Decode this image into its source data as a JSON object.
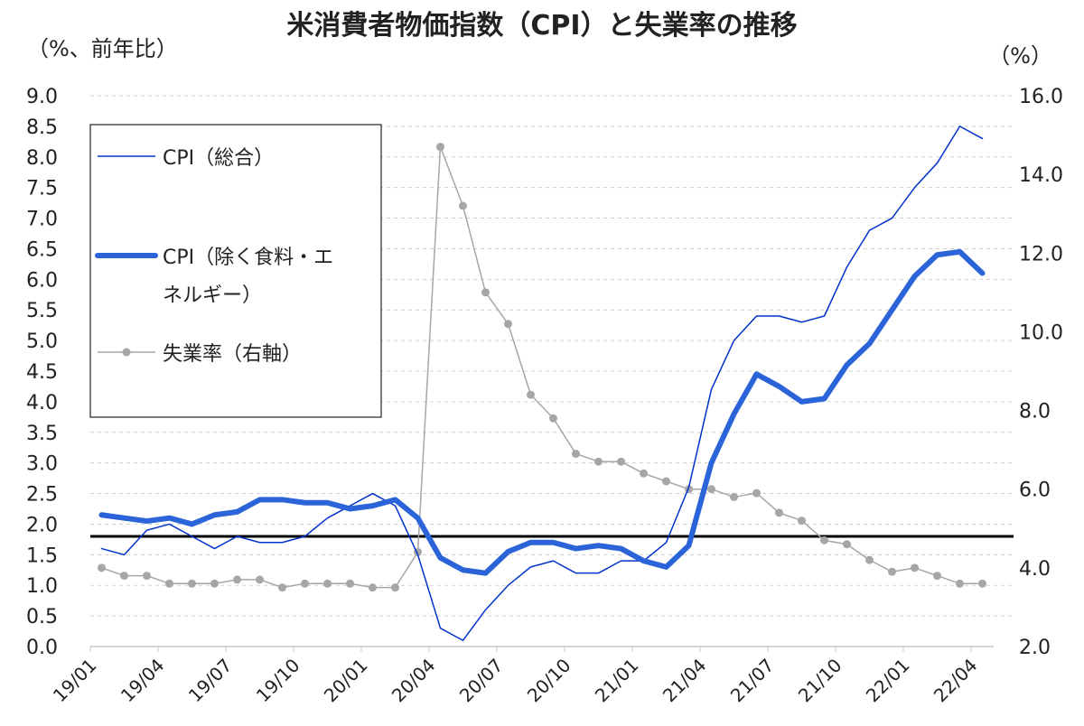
{
  "chart_data": {
    "type": "line",
    "title": "米消費者物価指数（CPI）と失業率の推移",
    "ylabel_left": "（%、前年比）",
    "ylabel_right": "（%）",
    "ylim_left": [
      0,
      9
    ],
    "ylim_right": [
      2,
      16
    ],
    "yticks_left": [
      "0.0",
      "0.5",
      "1.0",
      "1.5",
      "2.0",
      "2.5",
      "3.0",
      "3.5",
      "4.0",
      "4.5",
      "5.0",
      "5.5",
      "6.0",
      "6.5",
      "7.0",
      "7.5",
      "8.0",
      "8.5",
      "9.0"
    ],
    "yticks_right": [
      "2.0",
      "4.0",
      "6.0",
      "8.0",
      "10.0",
      "12.0",
      "14.0",
      "16.0"
    ],
    "grid": true,
    "legend_placement": "top-left",
    "categories": [
      "19/01",
      "19/02",
      "19/03",
      "19/04",
      "19/05",
      "19/06",
      "19/07",
      "19/08",
      "19/09",
      "19/10",
      "19/11",
      "19/12",
      "20/01",
      "20/02",
      "20/03",
      "20/04",
      "20/05",
      "20/06",
      "20/07",
      "20/08",
      "20/09",
      "20/10",
      "20/11",
      "20/12",
      "21/01",
      "21/02",
      "21/03",
      "21/04",
      "21/05",
      "21/06",
      "21/07",
      "21/08",
      "21/09",
      "21/10",
      "21/11",
      "21/12",
      "22/01",
      "22/02",
      "22/03",
      "22/04"
    ],
    "xtick_labels": [
      "19/01",
      "19/04",
      "19/07",
      "19/10",
      "20/01",
      "20/04",
      "20/07",
      "20/10",
      "21/01",
      "21/04",
      "21/07",
      "21/10",
      "22/01",
      "22/04"
    ],
    "reference_line_left": 1.8,
    "series": [
      {
        "name": "CPI（総合）",
        "axis": "left",
        "color": "#0033cc",
        "values": [
          1.6,
          1.5,
          1.9,
          2.0,
          1.8,
          1.6,
          1.8,
          1.7,
          1.7,
          1.8,
          2.1,
          2.3,
          2.5,
          2.3,
          1.5,
          0.3,
          0.1,
          0.6,
          1.0,
          1.3,
          1.4,
          1.2,
          1.2,
          1.4,
          1.4,
          1.7,
          2.6,
          4.2,
          5.0,
          5.4,
          5.4,
          5.3,
          5.4,
          6.2,
          6.8,
          7.0,
          7.5,
          7.9,
          8.5,
          8.3
        ]
      },
      {
        "name": "CPI（除く食料・エネルギー）",
        "name_lines": [
          "CPI（除く食料・エ",
          "ネルギー）"
        ],
        "axis": "left",
        "color": "#2a64d8",
        "values": [
          2.15,
          2.1,
          2.05,
          2.1,
          2.0,
          2.15,
          2.2,
          2.4,
          2.4,
          2.35,
          2.35,
          2.25,
          2.3,
          2.4,
          2.1,
          1.45,
          1.25,
          1.2,
          1.55,
          1.7,
          1.7,
          1.6,
          1.65,
          1.6,
          1.4,
          1.3,
          1.65,
          3.0,
          3.8,
          4.45,
          4.25,
          4.0,
          4.05,
          4.6,
          4.95,
          5.5,
          6.05,
          6.4,
          6.45,
          6.1
        ]
      },
      {
        "name": "失業率（右軸）",
        "axis": "right",
        "color": "#a6a6a6",
        "values": [
          4.0,
          3.8,
          3.8,
          3.6,
          3.6,
          3.6,
          3.7,
          3.7,
          3.5,
          3.6,
          3.6,
          3.6,
          3.5,
          3.5,
          4.4,
          14.7,
          13.2,
          11.0,
          10.2,
          8.4,
          7.8,
          6.9,
          6.7,
          6.7,
          6.4,
          6.2,
          6.0,
          6.0,
          5.8,
          5.9,
          5.4,
          5.2,
          4.7,
          4.6,
          4.2,
          3.9,
          4.0,
          3.8,
          3.6,
          3.6
        ]
      }
    ]
  }
}
